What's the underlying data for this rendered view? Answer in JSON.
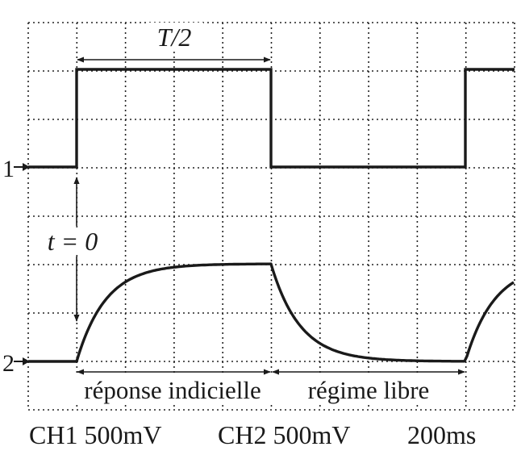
{
  "annotations": {
    "half_period": "T/2",
    "t0": "t = 0",
    "step_response": "réponse indicielle",
    "free_regime": "régime libre"
  },
  "channels": [
    {
      "marker": "1",
      "signal": "square"
    },
    {
      "marker": "2",
      "signal": "rc_response"
    }
  ],
  "settings": {
    "ch1": "CH1 500mV",
    "ch2": "CH2 500mV",
    "timebase": "200ms"
  }
}
